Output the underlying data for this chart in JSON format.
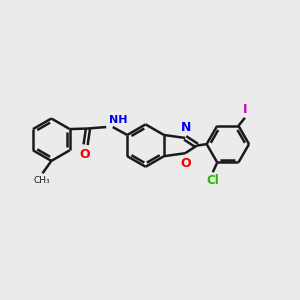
{
  "background_color": "#ebebeb",
  "bond_color": "#1a1a1a",
  "bond_width": 1.8,
  "figsize": [
    3.0,
    3.0
  ],
  "dpi": 100,
  "xlim": [
    0,
    10
  ],
  "ylim": [
    0,
    10
  ],
  "colors": {
    "N": "#0000ee",
    "O": "#ee0000",
    "Cl": "#22bb00",
    "I": "#cc00cc",
    "C": "#1a1a1a"
  }
}
